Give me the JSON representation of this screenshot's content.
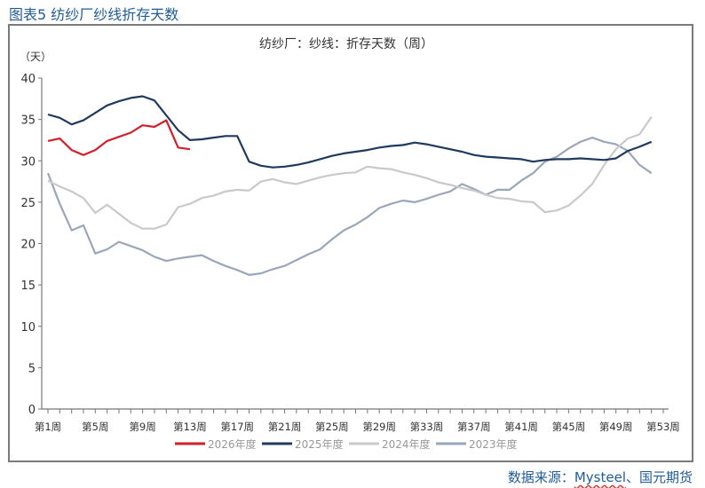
{
  "figure_title": "图表5  纺纱厂纱线折存天数",
  "source": {
    "prefix": "数据来源：",
    "name": "Mysteel",
    "suffix": "、国元期货"
  },
  "chart_data": {
    "type": "line",
    "title": "纺纱厂：纱线：折存天数（周）",
    "ylabel": "（天）",
    "xlabel": "",
    "ylim": [
      0,
      40
    ],
    "yticks": [
      0,
      5,
      10,
      15,
      20,
      25,
      30,
      35,
      40
    ],
    "xlim": [
      1,
      53
    ],
    "xtick_labels": [
      "第1周",
      "第5周",
      "第9周",
      "第13周",
      "第17周",
      "第21周",
      "第25周",
      "第29周",
      "第33周",
      "第37周",
      "第41周",
      "第45周",
      "第49周",
      "第53周"
    ],
    "grid": false,
    "legend": "bottom",
    "series": [
      {
        "name": "2026年度",
        "color": "#d0202a",
        "values": [
          32.4,
          32.7,
          31.3,
          30.7,
          31.3,
          32.4,
          32.9,
          33.4,
          34.3,
          34.1,
          34.9,
          31.6,
          31.4
        ]
      },
      {
        "name": "2025年度",
        "color": "#1f3a5f",
        "values": [
          35.6,
          35.2,
          34.4,
          34.9,
          35.8,
          36.7,
          37.2,
          37.6,
          37.8,
          37.3,
          35.5,
          33.7,
          32.5,
          32.6,
          32.8,
          33.0,
          33.0,
          29.9,
          29.4,
          29.2,
          29.3,
          29.5,
          29.8,
          30.2,
          30.6,
          30.9,
          31.1,
          31.3,
          31.6,
          31.8,
          31.9,
          32.2,
          32.0,
          31.7,
          31.4,
          31.1,
          30.7,
          30.5,
          30.4,
          30.3,
          30.2,
          29.9,
          30.1,
          30.2,
          30.2,
          30.3,
          30.2,
          30.1,
          30.3,
          31.2,
          31.7,
          32.3
        ]
      },
      {
        "name": "2024年度",
        "color": "#c9c9c9",
        "values": [
          27.6,
          26.9,
          26.3,
          25.5,
          23.7,
          24.7,
          23.6,
          22.5,
          21.8,
          21.8,
          22.3,
          24.4,
          24.8,
          25.5,
          25.8,
          26.3,
          26.5,
          26.4,
          27.5,
          27.8,
          27.4,
          27.2,
          27.6,
          28.0,
          28.3,
          28.5,
          28.6,
          29.3,
          29.1,
          29.0,
          28.6,
          28.3,
          27.9,
          27.4,
          27.1,
          26.7,
          26.4,
          25.9,
          25.5,
          25.4,
          25.1,
          25.0,
          23.8,
          24.0,
          24.6,
          25.8,
          27.2,
          29.5,
          31.4,
          32.7,
          33.2,
          35.3
        ]
      },
      {
        "name": "2023年度",
        "color": "#9aa6ba",
        "values": [
          28.5,
          24.8,
          21.6,
          22.2,
          18.8,
          19.3,
          20.2,
          19.7,
          19.2,
          18.4,
          17.9,
          18.2,
          18.4,
          18.6,
          17.9,
          17.3,
          16.8,
          16.2,
          16.4,
          16.9,
          17.3,
          18.0,
          18.7,
          19.3,
          20.5,
          21.6,
          22.3,
          23.2,
          24.3,
          24.8,
          25.2,
          25.0,
          25.4,
          25.9,
          26.3,
          27.2,
          26.6,
          25.9,
          26.5,
          26.5,
          27.6,
          28.5,
          29.9,
          30.5,
          31.5,
          32.3,
          32.8,
          32.3,
          32.0,
          31.2,
          29.5,
          28.5
        ]
      }
    ]
  }
}
